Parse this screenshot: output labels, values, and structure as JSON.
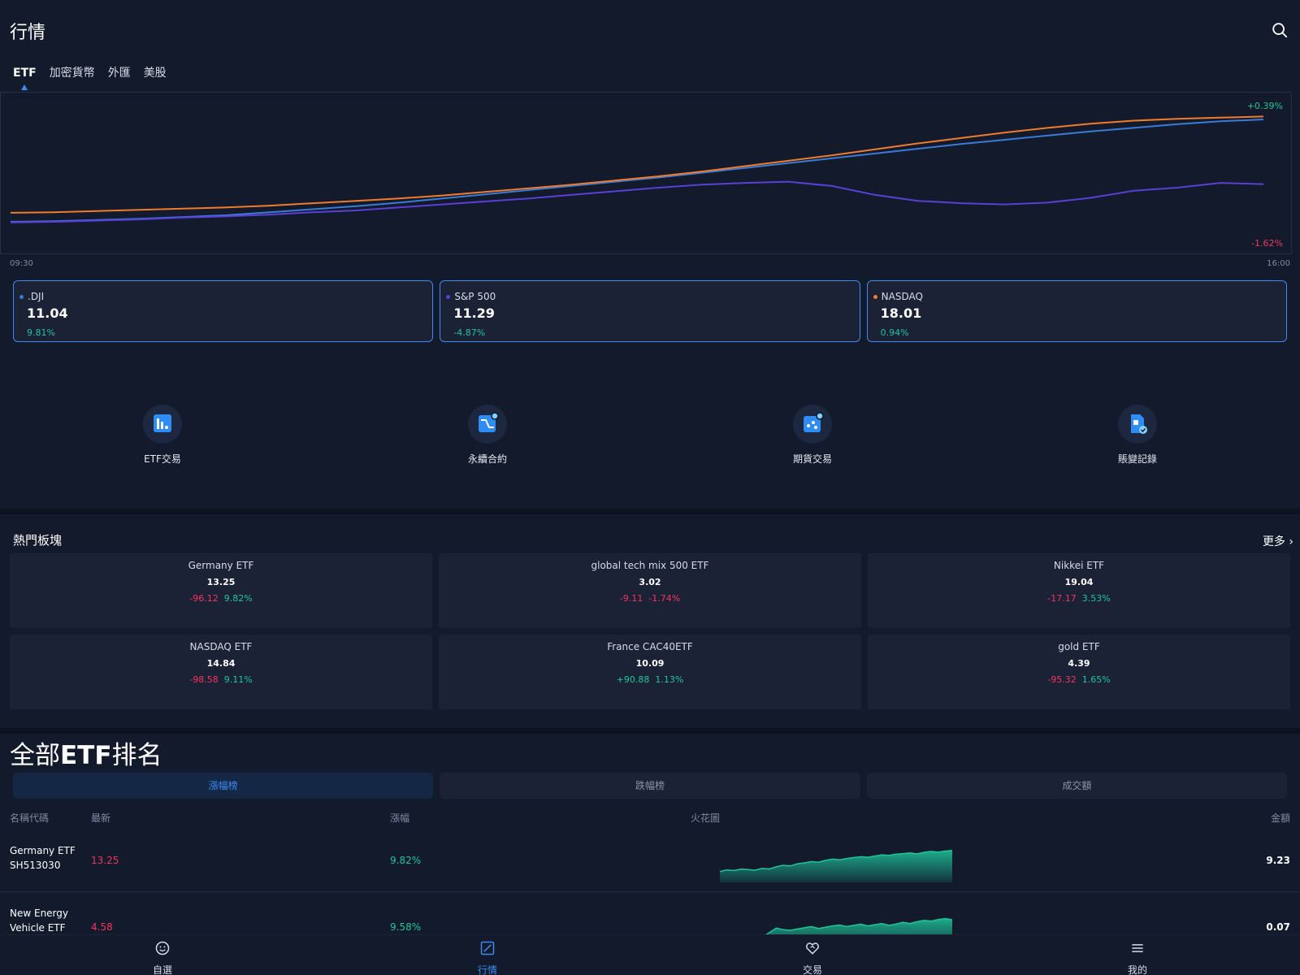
{
  "header": {
    "title": "行情",
    "search_icon": "search-icon"
  },
  "tabs": [
    {
      "label": "ETF",
      "active": true
    },
    {
      "label": "加密貨幣",
      "active": false
    },
    {
      "label": "外匯",
      "active": false
    },
    {
      "label": "美股",
      "active": false
    }
  ],
  "chart": {
    "max_label": "+0.39%",
    "min_label": "-1.62%",
    "start_time": "09:30",
    "end_time": "16:00"
  },
  "chart_data": {
    "type": "line",
    "x_labels": [
      "09:30",
      "16:00"
    ],
    "ylim": [
      -1.62,
      0.39
    ],
    "series": [
      {
        "name": ".DJI",
        "color": "#3a7bd5",
        "values": [
          -1.47,
          -1.46,
          -1.44,
          -1.42,
          -1.39,
          -1.36,
          -1.31,
          -1.26,
          -1.21,
          -1.15,
          -1.08,
          -1.01,
          -0.94,
          -0.87,
          -0.8,
          -0.73,
          -0.65,
          -0.57,
          -0.49,
          -0.41,
          -0.33,
          -0.25,
          -0.17,
          -0.1,
          -0.03,
          0.04,
          0.1,
          0.16,
          0.21,
          0.24
        ]
      },
      {
        "name": "S&P 500",
        "color": "#5b3fd6",
        "values": [
          -1.48,
          -1.47,
          -1.45,
          -1.43,
          -1.4,
          -1.38,
          -1.35,
          -1.31,
          -1.28,
          -1.23,
          -1.18,
          -1.13,
          -1.08,
          -1.02,
          -0.96,
          -0.9,
          -0.85,
          -0.82,
          -0.8,
          -0.87,
          -1.02,
          -1.12,
          -1.16,
          -1.18,
          -1.15,
          -1.07,
          -0.95,
          -0.9,
          -0.82,
          -0.84
        ]
      },
      {
        "name": "NASDAQ",
        "color": "#f07b2c",
        "values": [
          -1.32,
          -1.31,
          -1.29,
          -1.27,
          -1.25,
          -1.23,
          -1.2,
          -1.16,
          -1.12,
          -1.08,
          -1.03,
          -0.97,
          -0.91,
          -0.85,
          -0.78,
          -0.71,
          -0.63,
          -0.54,
          -0.45,
          -0.36,
          -0.26,
          -0.16,
          -0.07,
          0.02,
          0.1,
          0.17,
          0.22,
          0.25,
          0.27,
          0.29
        ]
      }
    ]
  },
  "indices": [
    {
      "name": ".DJI",
      "value": "11.04",
      "change": "9.81%",
      "dot_color": "#3a7bd5",
      "up": true
    },
    {
      "name": "S&P 500",
      "value": "11.29",
      "change": "-4.87%",
      "dot_color": "#5b3fd6",
      "up": true
    },
    {
      "name": "NASDAQ",
      "value": "18.01",
      "change": "0.94%",
      "dot_color": "#f07b2c",
      "up": true
    }
  ],
  "quick_actions": [
    {
      "label": "ETF交易",
      "icon": "chart-bars-icon"
    },
    {
      "label": "永續合約",
      "icon": "contract-icon"
    },
    {
      "label": "期貨交易",
      "icon": "futures-icon"
    },
    {
      "label": "賬變記錄",
      "icon": "record-icon"
    }
  ],
  "hot": {
    "title": "熱門板塊",
    "more": "更多",
    "items": [
      {
        "name": "Germany ETF",
        "price": "13.25",
        "change": "-96.12",
        "pct": "9.82%",
        "change_up": false
      },
      {
        "name": "global tech mix 500 ETF",
        "price": "3.02",
        "change": "-9.11",
        "pct": "-1.74%",
        "change_up": false
      },
      {
        "name": "Nikkei ETF",
        "price": "19.04",
        "change": "-17.17",
        "pct": "3.53%",
        "change_up": false
      },
      {
        "name": "NASDAQ ETF",
        "price": "14.84",
        "change": "-98.58",
        "pct": "9.11%",
        "change_up": false
      },
      {
        "name": "France CAC40ETF",
        "price": "10.09",
        "change": "+90.88",
        "pct": "1.13%",
        "change_up": true
      },
      {
        "name": "gold ETF",
        "price": "4.39",
        "change": "-95.32",
        "pct": "1.65%",
        "change_up": false
      }
    ]
  },
  "ranking": {
    "title_prefix": "全部",
    "title_bold": "ETF",
    "title_suffix": "排名",
    "tabs": [
      {
        "label": "漲幅榜",
        "active": true
      },
      {
        "label": "跌幅榜",
        "active": false
      },
      {
        "label": "成交額",
        "active": false
      }
    ],
    "headers": {
      "name": "名稱代碼",
      "latest": "最新",
      "gain": "漲幅",
      "spark": "火花圖",
      "amount": "金額"
    },
    "rows": [
      {
        "name": "Germany ETF",
        "code": "SH513030",
        "latest": "13.25",
        "gain": "9.82%",
        "amount": "9.23",
        "spark": [
          0.3,
          0.35,
          0.33,
          0.38,
          0.36,
          0.34,
          0.4,
          0.38,
          0.45,
          0.5,
          0.48,
          0.55,
          0.58,
          0.62,
          0.6,
          0.66,
          0.7,
          0.68,
          0.72,
          0.75,
          0.78,
          0.76,
          0.8,
          0.84,
          0.82,
          0.86,
          0.88,
          0.9,
          0.87,
          0.92,
          0.95,
          0.93,
          0.96,
          0.98
        ]
      },
      {
        "name": "New Energy Vehicle ETF",
        "code": "",
        "latest": "4.58",
        "gain": "9.58%",
        "amount": "0.07",
        "spark": [
          0.1,
          0.12,
          0.08,
          0.15,
          0.2,
          0.25,
          0.35,
          0.5,
          0.65,
          0.6,
          0.58,
          0.62,
          0.66,
          0.7,
          0.64,
          0.68,
          0.72,
          0.75,
          0.7,
          0.74,
          0.78,
          0.72,
          0.76,
          0.8,
          0.74,
          0.78,
          0.84,
          0.8,
          0.86,
          0.9,
          0.88,
          0.93,
          0.96,
          0.92
        ]
      }
    ]
  },
  "nav": [
    {
      "label": "自選",
      "icon": "smile-icon",
      "active": false
    },
    {
      "label": "行情",
      "icon": "market-icon",
      "active": true
    },
    {
      "label": "交易",
      "icon": "handshake-icon",
      "active": false
    },
    {
      "label": "我的",
      "icon": "menu-icon",
      "active": false
    }
  ]
}
